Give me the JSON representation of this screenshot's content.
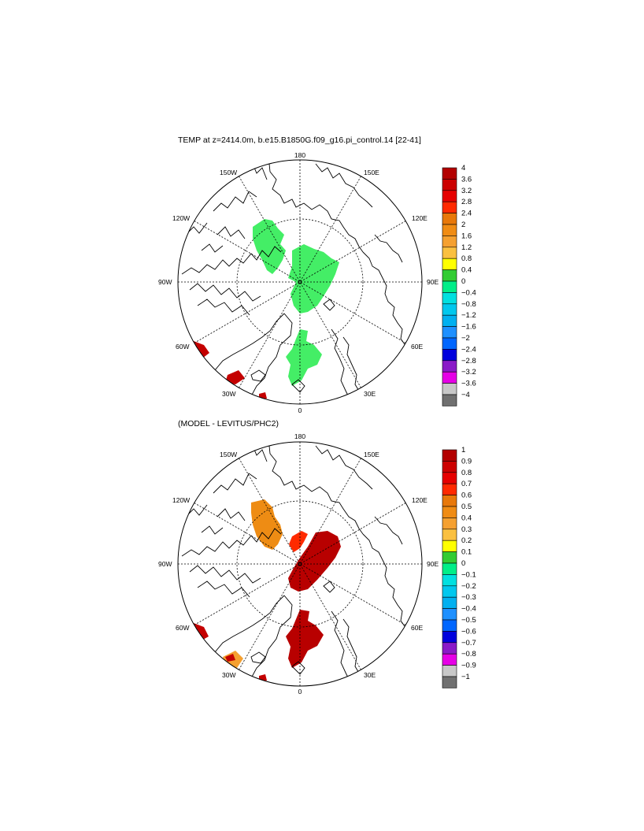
{
  "panels": [
    {
      "title": "TEMP at z=2414.0m, b.e15.B1850G.f09_g16.pi_control.14 [22-41]",
      "lon_labels": {
        "top": "180",
        "bottom": "0",
        "left": "90W",
        "right": "90E",
        "ul150": "150W",
        "ur150": "150E",
        "ul120": "120W",
        "ur120": "120E",
        "ll60": "60W",
        "lr60": "60E",
        "ll30": "30W",
        "lr30": "30E"
      },
      "colorbar": {
        "labels": [
          "4",
          "3.6",
          "3.2",
          "2.8",
          "2.4",
          "2",
          "1.6",
          "1.2",
          "0.8",
          "0.4",
          "0",
          "−0.4",
          "−0.8",
          "−1.2",
          "−1.6",
          "−2",
          "−2.4",
          "−2.8",
          "−3.2",
          "−3.6",
          "−4"
        ],
        "colors": [
          "#b30000",
          "#cc0000",
          "#e60000",
          "#ff2a00",
          "#e8780a",
          "#f08c14",
          "#f5a030",
          "#fac040",
          "#ffff00",
          "#33cc33",
          "#00ee88",
          "#00e0e0",
          "#00c8ee",
          "#00b0f0",
          "#1e90ff",
          "#0066ff",
          "#0000dd",
          "#8a1ac8",
          "#e600e6",
          "#c8c8c8",
          "#707070"
        ]
      },
      "fields": [
        {
          "color": "#44ee66"
        },
        {
          "color": "#c40000"
        }
      ]
    },
    {
      "title": "(MODEL - LEVITUS/PHC2)",
      "lon_labels": {
        "top": "180",
        "bottom": "0",
        "left": "90W",
        "right": "90E",
        "ul150": "150W",
        "ur150": "150E",
        "ul120": "120W",
        "ur120": "120E",
        "ll60": "60W",
        "lr60": "60E",
        "ll30": "30W",
        "lr30": "30E"
      },
      "colorbar": {
        "labels": [
          "1",
          "0.9",
          "0.8",
          "0.7",
          "0.6",
          "0.5",
          "0.4",
          "0.3",
          "0.2",
          "0.1",
          "0",
          "−0.1",
          "−0.2",
          "−0.3",
          "−0.4",
          "−0.5",
          "−0.6",
          "−0.7",
          "−0.8",
          "−0.9",
          "−1"
        ],
        "colors": [
          "#b30000",
          "#cc0000",
          "#e60000",
          "#ff2a00",
          "#e8780a",
          "#f08c14",
          "#f5a030",
          "#fac040",
          "#ffff00",
          "#33cc33",
          "#00ee88",
          "#00e0e0",
          "#00c8ee",
          "#00b0f0",
          "#1e90ff",
          "#0066ff",
          "#0000dd",
          "#8a1ac8",
          "#e600e6",
          "#c8c8c8",
          "#707070"
        ]
      },
      "fields": [
        {
          "color": "#ee8c14"
        },
        {
          "color": "#b80000"
        },
        {
          "color": "#ff2a00"
        }
      ]
    }
  ]
}
